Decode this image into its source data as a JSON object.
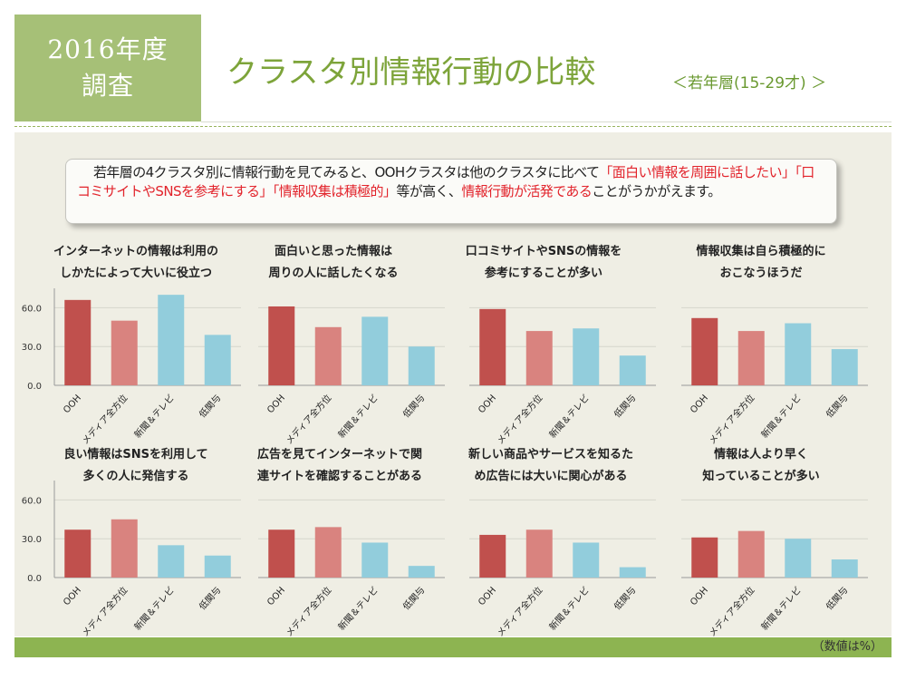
{
  "header": {
    "badge_line1": "2016年度",
    "badge_line2": "調査",
    "title": "クラスタ別情報行動の比較",
    "subtitle": "＜若年層(15-29才) ＞"
  },
  "summary": {
    "p1": "若年層の4クラスタ別に情報行動を見てみると、OOHクラスタは他のクラスタに比べて",
    "p2": "「面白い情報を周囲に話したい」「口コミサイトやSNSを参考にする」「情報収集は積極的」",
    "p3": "等が高く、",
    "p4": "情報行動が活発である",
    "p5": "ことがうかがえます。"
  },
  "footer": {
    "note": "（数値は%）"
  },
  "colors": {
    "OOH": "#c0504d",
    "メディア全方位": "#d9837f",
    "新聞＆テレビ": "#92cddc",
    "低関与": "#92cddc"
  },
  "chart_data": [
    {
      "type": "bar",
      "title_line1": "インターネットの情報は利用の",
      "title_line2": "しかたによって大いに役立つ",
      "categories": [
        "OOH",
        "メディア全方位",
        "新聞＆テレビ",
        "低関与"
      ],
      "values": [
        66,
        50,
        70,
        39
      ],
      "yticks": [
        "60.0",
        "30.0",
        "0.0"
      ],
      "ylim": [
        0,
        75
      ]
    },
    {
      "type": "bar",
      "title_line1": "面白いと思った情報は",
      "title_line2": "周りの人に話したくなる",
      "categories": [
        "OOH",
        "メディア全方位",
        "新聞＆テレビ",
        "低関与"
      ],
      "values": [
        61,
        45,
        53,
        30
      ],
      "ylim": [
        0,
        75
      ]
    },
    {
      "type": "bar",
      "title_line1": "口コミサイトやSNSの情報を",
      "title_line2": "参考にすることが多い",
      "categories": [
        "OOH",
        "メディア全方位",
        "新聞＆テレビ",
        "低関与"
      ],
      "values": [
        59,
        42,
        44,
        23
      ],
      "ylim": [
        0,
        75
      ]
    },
    {
      "type": "bar",
      "title_line1": "情報収集は自ら積極的に",
      "title_line2": "おこなうほうだ",
      "categories": [
        "OOH",
        "メディア全方位",
        "新聞＆テレビ",
        "低関与"
      ],
      "values": [
        52,
        42,
        48,
        28
      ],
      "ylim": [
        0,
        75
      ]
    },
    {
      "type": "bar",
      "title_line1": "良い情報はSNSを利用して",
      "title_line2": "多くの人に発信する",
      "categories": [
        "OOH",
        "メディア全方位",
        "新聞＆テレビ",
        "低関与"
      ],
      "values": [
        37,
        45,
        25,
        17
      ],
      "yticks": [
        "60.0",
        "30.0",
        "0.0"
      ],
      "ylim": [
        0,
        75
      ]
    },
    {
      "type": "bar",
      "title_line1": "広告を見てインターネットで関",
      "title_line2": "連サイトを確認することがある",
      "categories": [
        "OOH",
        "メディア全方位",
        "新聞＆テレビ",
        "低関与"
      ],
      "values": [
        37,
        39,
        27,
        9
      ],
      "ylim": [
        0,
        75
      ]
    },
    {
      "type": "bar",
      "title_line1": "新しい商品やサービスを知るた",
      "title_line2": "め広告には大いに関心がある",
      "categories": [
        "OOH",
        "メディア全方位",
        "新聞＆テレビ",
        "低関与"
      ],
      "values": [
        33,
        37,
        27,
        8
      ],
      "ylim": [
        0,
        75
      ]
    },
    {
      "type": "bar",
      "title_line1": "情報は人より早く",
      "title_line2": "知っていることが多い",
      "categories": [
        "OOH",
        "メディア全方位",
        "新聞＆テレビ",
        "低関与"
      ],
      "values": [
        31,
        36,
        30,
        14
      ],
      "ylim": [
        0,
        75
      ]
    }
  ]
}
